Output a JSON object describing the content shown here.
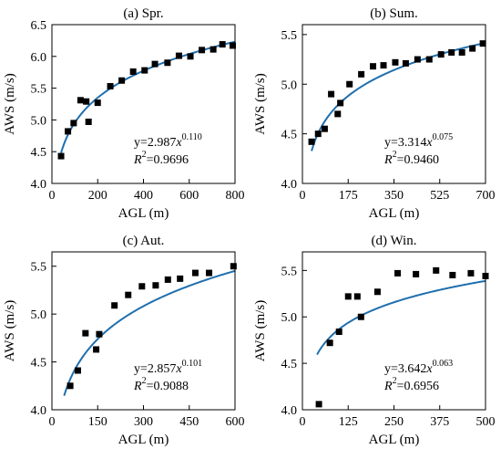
{
  "chart_data": [
    {
      "type": "scatter",
      "title": "(a) Spr.",
      "xlabel": "AGL (m)",
      "ylabel": "AWS (m/s)",
      "xlim": [
        0,
        800
      ],
      "ylim": [
        4.0,
        6.5
      ],
      "xticks": [
        0,
        200,
        400,
        600,
        800
      ],
      "yticks": [
        4.0,
        4.5,
        5.0,
        5.5,
        6.0,
        6.5
      ],
      "xtick_labels": [
        "0",
        "200",
        "400",
        "600",
        "800"
      ],
      "ytick_labels": [
        "4.0",
        "4.5",
        "5.0",
        "5.5",
        "6.0",
        "6.5"
      ],
      "grid": false,
      "fit": {
        "a": 2.987,
        "b": 0.11,
        "x_start": 40,
        "x_end": 800
      },
      "equation": {
        "prefix": "y=2.987",
        "var": "x",
        "exponent": "0.110",
        "r2_label": "R",
        "r2_exp": "2",
        "r2_value": "=0.9696"
      },
      "points": [
        {
          "x": 40,
          "y": 4.43
        },
        {
          "x": 70,
          "y": 4.82
        },
        {
          "x": 95,
          "y": 4.95
        },
        {
          "x": 125,
          "y": 5.31
        },
        {
          "x": 150,
          "y": 5.29
        },
        {
          "x": 160,
          "y": 4.97
        },
        {
          "x": 200,
          "y": 5.27
        },
        {
          "x": 255,
          "y": 5.53
        },
        {
          "x": 305,
          "y": 5.62
        },
        {
          "x": 355,
          "y": 5.76
        },
        {
          "x": 405,
          "y": 5.78
        },
        {
          "x": 450,
          "y": 5.88
        },
        {
          "x": 505,
          "y": 5.9
        },
        {
          "x": 555,
          "y": 6.01
        },
        {
          "x": 605,
          "y": 6.0
        },
        {
          "x": 655,
          "y": 6.1
        },
        {
          "x": 705,
          "y": 6.11
        },
        {
          "x": 745,
          "y": 6.19
        },
        {
          "x": 790,
          "y": 6.17
        }
      ]
    },
    {
      "type": "scatter",
      "title": "(b) Sum.",
      "xlabel": "AGL (m)",
      "ylabel": "AWS (m/s)",
      "xlim": [
        0,
        700
      ],
      "ylim": [
        4.0,
        5.6
      ],
      "xticks": [
        0,
        175,
        350,
        525,
        700
      ],
      "yticks": [
        4.0,
        4.5,
        5.0,
        5.5
      ],
      "xtick_labels": [
        "0",
        "175",
        "350",
        "525",
        "700"
      ],
      "ytick_labels": [
        "4.0",
        "4.5",
        "5.0",
        "5.5"
      ],
      "grid": false,
      "fit": {
        "a": 3.314,
        "b": 0.075,
        "x_start": 35,
        "x_end": 700
      },
      "equation": {
        "prefix": "y=3.314",
        "var": "x",
        "exponent": "0.075",
        "r2_label": "R",
        "r2_exp": "2",
        "r2_value": "=0.9460"
      },
      "points": [
        {
          "x": 35,
          "y": 4.42
        },
        {
          "x": 60,
          "y": 4.5
        },
        {
          "x": 85,
          "y": 4.55
        },
        {
          "x": 110,
          "y": 4.9
        },
        {
          "x": 135,
          "y": 4.7
        },
        {
          "x": 145,
          "y": 4.81
        },
        {
          "x": 180,
          "y": 5.0
        },
        {
          "x": 225,
          "y": 5.1
        },
        {
          "x": 270,
          "y": 5.18
        },
        {
          "x": 310,
          "y": 5.19
        },
        {
          "x": 355,
          "y": 5.22
        },
        {
          "x": 395,
          "y": 5.21
        },
        {
          "x": 440,
          "y": 5.25
        },
        {
          "x": 485,
          "y": 5.25
        },
        {
          "x": 530,
          "y": 5.3
        },
        {
          "x": 570,
          "y": 5.32
        },
        {
          "x": 610,
          "y": 5.32
        },
        {
          "x": 650,
          "y": 5.36
        },
        {
          "x": 690,
          "y": 5.41
        }
      ]
    },
    {
      "type": "scatter",
      "title": "(c) Aut.",
      "xlabel": "AGL (m)",
      "ylabel": "AWS (m/s)",
      "xlim": [
        0,
        600
      ],
      "ylim": [
        4.0,
        5.65
      ],
      "xticks": [
        0,
        150,
        300,
        450,
        600
      ],
      "yticks": [
        4.0,
        4.5,
        5.0,
        5.5
      ],
      "xtick_labels": [
        "0",
        "150",
        "300",
        "450",
        "600"
      ],
      "ytick_labels": [
        "4.0",
        "4.5",
        "5.0",
        "5.5"
      ],
      "grid": false,
      "fit": {
        "a": 2.857,
        "b": 0.101,
        "x_start": 40,
        "x_end": 600
      },
      "equation": {
        "prefix": "y=2.857",
        "var": "x",
        "exponent": "0.101",
        "r2_label": "R",
        "r2_exp": "2",
        "r2_value": "=0.9088"
      },
      "points": [
        {
          "x": 60,
          "y": 4.25
        },
        {
          "x": 85,
          "y": 4.41
        },
        {
          "x": 110,
          "y": 4.8
        },
        {
          "x": 145,
          "y": 4.63
        },
        {
          "x": 155,
          "y": 4.79
        },
        {
          "x": 205,
          "y": 5.09
        },
        {
          "x": 250,
          "y": 5.2
        },
        {
          "x": 295,
          "y": 5.29
        },
        {
          "x": 340,
          "y": 5.3
        },
        {
          "x": 380,
          "y": 5.36
        },
        {
          "x": 420,
          "y": 5.37
        },
        {
          "x": 470,
          "y": 5.43
        },
        {
          "x": 515,
          "y": 5.43
        },
        {
          "x": 595,
          "y": 5.5
        }
      ]
    },
    {
      "type": "scatter",
      "title": "(d) Win.",
      "xlabel": "AGL (m)",
      "ylabel": "AWS (m/s)",
      "xlim": [
        0,
        500
      ],
      "ylim": [
        4.0,
        5.7
      ],
      "xticks": [
        0,
        125,
        250,
        375,
        500
      ],
      "yticks": [
        4.0,
        4.5,
        5.0,
        5.5
      ],
      "xtick_labels": [
        "0",
        "125",
        "250",
        "375",
        "500"
      ],
      "ytick_labels": [
        "4.0",
        "4.5",
        "5.0",
        "5.5"
      ],
      "grid": false,
      "fit": {
        "a": 3.642,
        "b": 0.063,
        "x_start": 40,
        "x_end": 500
      },
      "equation": {
        "prefix": "y=3.642",
        "var": "x",
        "exponent": "0.063",
        "r2_label": "R",
        "r2_exp": "2",
        "r2_value": "=0.6956"
      },
      "points": [
        {
          "x": 45,
          "y": 4.06
        },
        {
          "x": 75,
          "y": 4.72
        },
        {
          "x": 100,
          "y": 4.84
        },
        {
          "x": 125,
          "y": 5.22
        },
        {
          "x": 150,
          "y": 5.22
        },
        {
          "x": 160,
          "y": 5.0
        },
        {
          "x": 205,
          "y": 5.27
        },
        {
          "x": 260,
          "y": 5.47
        },
        {
          "x": 310,
          "y": 5.46
        },
        {
          "x": 365,
          "y": 5.5
        },
        {
          "x": 410,
          "y": 5.45
        },
        {
          "x": 460,
          "y": 5.47
        },
        {
          "x": 500,
          "y": 5.44
        }
      ]
    }
  ],
  "colors": {
    "fit_line": "#1f6fae",
    "marker": "#000000",
    "axes": "#000000"
  }
}
